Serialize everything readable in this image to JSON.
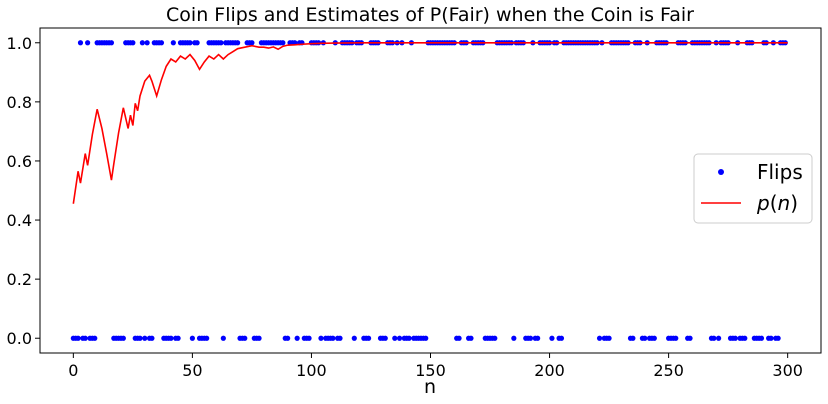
{
  "chart_data": {
    "type": "scatter+line",
    "title": "Coin Flips and Estimates of P(Fair) when the Coin is Fair",
    "xlabel": "n",
    "ylabel": "",
    "xlim": [
      -14,
      314
    ],
    "ylim": [
      -0.05,
      1.05
    ],
    "xticks": [
      0,
      50,
      100,
      150,
      200,
      250,
      300
    ],
    "yticks": [
      0.0,
      0.2,
      0.4,
      0.6,
      0.8,
      1.0
    ],
    "xtick_labels": [
      "0",
      "50",
      "100",
      "150",
      "200",
      "250",
      "300"
    ],
    "ytick_labels": [
      "0.0",
      "0.2",
      "0.4",
      "0.6",
      "0.8",
      "1.0"
    ],
    "grid": false,
    "legend_position": "center-right",
    "series": [
      {
        "name": "Flips",
        "kind": "scatter",
        "color": "#0000ff",
        "heads": [
          3,
          6,
          10,
          11,
          12,
          13,
          14,
          15,
          16,
          22,
          23,
          24,
          25,
          29,
          31,
          34,
          35,
          36,
          37,
          42,
          45,
          46,
          47,
          48,
          49,
          51,
          52,
          57,
          58,
          59,
          60,
          61,
          62,
          64,
          65,
          66,
          67,
          68,
          69,
          73,
          74,
          75,
          79,
          80,
          81,
          82,
          83,
          84,
          85,
          86,
          87,
          88,
          91,
          92,
          93,
          95,
          96,
          100,
          101,
          102,
          103,
          105,
          110,
          113,
          114,
          115,
          116,
          117,
          119,
          120,
          121,
          125,
          126,
          127,
          128,
          132,
          133,
          134,
          136,
          138,
          142,
          149,
          150,
          151,
          152,
          153,
          154,
          155,
          156,
          157,
          158,
          159,
          160,
          163,
          164,
          165,
          168,
          169,
          170,
          171,
          172,
          178,
          179,
          180,
          181,
          182,
          183,
          184,
          186,
          187,
          188,
          189,
          193,
          196,
          197,
          198,
          199,
          200,
          202,
          203,
          206,
          207,
          208,
          209,
          210,
          211,
          212,
          213,
          214,
          215,
          216,
          217,
          218,
          219,
          220,
          222,
          226,
          227,
          228,
          229,
          230,
          231,
          232,
          233,
          236,
          237,
          238,
          241,
          245,
          246,
          247,
          248,
          249,
          254,
          255,
          256,
          257,
          260,
          261,
          262,
          263,
          264,
          265,
          266,
          267,
          270,
          272,
          273,
          274,
          275,
          279,
          283,
          284,
          285,
          290,
          291,
          294,
          297,
          298,
          299
        ],
        "tails": [
          0,
          1,
          2,
          4,
          5,
          7,
          8,
          9,
          17,
          18,
          19,
          20,
          21,
          26,
          27,
          28,
          30,
          32,
          33,
          38,
          39,
          40,
          41,
          43,
          44,
          50,
          53,
          54,
          55,
          56,
          63,
          70,
          71,
          72,
          76,
          77,
          78,
          89,
          90,
          94,
          97,
          98,
          99,
          104,
          106,
          107,
          108,
          109,
          111,
          112,
          118,
          122,
          123,
          124,
          129,
          130,
          131,
          135,
          137,
          139,
          140,
          141,
          143,
          144,
          145,
          146,
          147,
          148,
          161,
          162,
          166,
          167,
          173,
          174,
          175,
          176,
          177,
          185,
          190,
          191,
          192,
          194,
          195,
          201,
          204,
          205,
          221,
          223,
          224,
          225,
          234,
          235,
          239,
          240,
          242,
          243,
          244,
          250,
          251,
          252,
          253,
          258,
          259,
          268,
          269,
          271,
          276,
          277,
          278,
          280,
          281,
          282,
          286,
          287,
          288,
          289,
          292,
          293,
          295,
          296
        ]
      },
      {
        "name": "$p(n)$",
        "kind": "line",
        "color": "#ff0000",
        "x": [
          0,
          2,
          3,
          5,
          6,
          8,
          10,
          12,
          14,
          16,
          17,
          19,
          21,
          23,
          24,
          25,
          26,
          27,
          28,
          30,
          32,
          33,
          35,
          37,
          39,
          41,
          43,
          45,
          47,
          49,
          51,
          53,
          55,
          57,
          59,
          61,
          63,
          65,
          67,
          69,
          72,
          75,
          78,
          80,
          82,
          84,
          86,
          88,
          90,
          93,
          96,
          100,
          104,
          110,
          120,
          150,
          200,
          250,
          300
        ],
        "y": [
          0.455,
          0.565,
          0.525,
          0.625,
          0.585,
          0.69,
          0.775,
          0.71,
          0.625,
          0.535,
          0.59,
          0.695,
          0.78,
          0.71,
          0.755,
          0.72,
          0.795,
          0.77,
          0.82,
          0.87,
          0.89,
          0.87,
          0.82,
          0.875,
          0.92,
          0.945,
          0.935,
          0.955,
          0.945,
          0.96,
          0.94,
          0.91,
          0.935,
          0.955,
          0.945,
          0.96,
          0.945,
          0.96,
          0.97,
          0.98,
          0.985,
          0.99,
          0.985,
          0.985,
          0.982,
          0.986,
          0.978,
          0.988,
          0.992,
          0.993,
          0.995,
          0.997,
          0.998,
          0.999,
          1.0,
          1.0,
          1.0,
          1.0,
          1.0
        ]
      }
    ]
  }
}
